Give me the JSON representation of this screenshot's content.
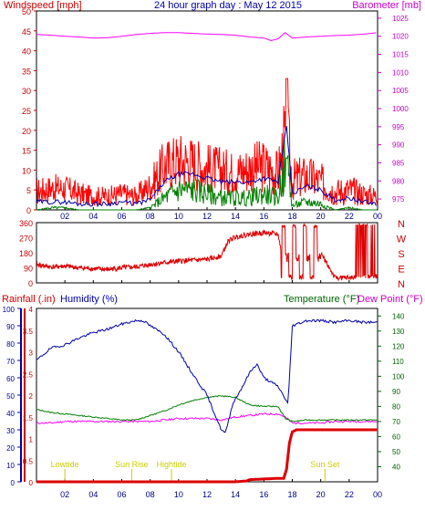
{
  "title": "24 hour graph day : May 12 2015",
  "chart_data": [
    {
      "type": "line",
      "panel": "wind-barometer",
      "left_axis": {
        "label": "Windspeed [mph]",
        "ylim": [
          0,
          50
        ],
        "ticks": [
          0,
          5,
          10,
          15,
          20,
          25,
          30,
          35,
          40,
          45,
          50
        ]
      },
      "right_axis": {
        "label": "Barometer [mb]",
        "ylim": [
          972,
          1027
        ],
        "ticks": [
          975,
          980,
          985,
          990,
          995,
          1000,
          1005,
          1010,
          1015,
          1020,
          1025
        ]
      },
      "x_tick_labels": [
        "02",
        "04",
        "06",
        "08",
        "10",
        "12",
        "14",
        "16",
        "18",
        "20",
        "22",
        "00"
      ],
      "xlim": [
        0,
        24
      ],
      "series": [
        {
          "axis": "right",
          "color": "#ff00ff",
          "x": [
            0,
            1,
            2,
            3,
            4,
            5,
            6,
            7,
            8,
            9,
            10,
            11,
            12,
            13,
            14,
            15,
            16,
            16.5,
            17,
            17.5,
            18,
            19,
            20,
            21,
            22,
            23,
            24
          ],
          "values": [
            1020.5,
            1020.3,
            1020.0,
            1019.8,
            1019.5,
            1019.6,
            1020.0,
            1020.5,
            1020.8,
            1021.0,
            1021.0,
            1020.8,
            1020.6,
            1020.5,
            1020.3,
            1019.8,
            1019.5,
            1018.8,
            1019.3,
            1021.0,
            1019.5,
            1019.8,
            1020.0,
            1020.2,
            1020.3,
            1020.6,
            1021.0
          ]
        },
        {
          "color": "#ff0000",
          "x": [
            0,
            1,
            2,
            3,
            4,
            5,
            6,
            7,
            8,
            9,
            10,
            11,
            12,
            13,
            14,
            15,
            16,
            17,
            17.6,
            18,
            19,
            20,
            21,
            22,
            23,
            24
          ],
          "values": [
            4,
            5,
            6,
            4,
            3,
            3,
            4,
            3,
            5,
            10,
            12,
            13,
            11,
            10,
            9,
            10,
            11,
            9,
            33,
            6,
            8,
            7,
            4,
            5,
            4,
            3
          ],
          "min": [
            1,
            2,
            2,
            1,
            1,
            1,
            1,
            1,
            2,
            4,
            5,
            5,
            4,
            4,
            4,
            4,
            4,
            3,
            4,
            2,
            3,
            2,
            1,
            1,
            1,
            1
          ],
          "max": [
            8,
            9,
            9,
            7,
            6,
            6,
            7,
            6,
            10,
            18,
            20,
            19,
            17,
            16,
            15,
            17,
            18,
            15,
            33,
            13,
            14,
            12,
            8,
            9,
            7,
            6
          ]
        },
        {
          "color": "#0000aa",
          "x": [
            0,
            1,
            2,
            3,
            4,
            5,
            6,
            7,
            8,
            9,
            10,
            11,
            12,
            13,
            14,
            15,
            16,
            17,
            17.6,
            18,
            19,
            20,
            21,
            22,
            23,
            24
          ],
          "values": [
            2,
            2,
            2,
            1.5,
            1.5,
            1.5,
            2,
            1.5,
            2.5,
            7,
            9,
            9,
            8,
            7,
            7,
            7,
            8,
            7,
            21,
            4,
            6,
            5,
            2.5,
            3,
            2,
            1.5
          ]
        },
        {
          "color": "#008000",
          "x": [
            0,
            1,
            2,
            3,
            4,
            5,
            6,
            7,
            8,
            9,
            10,
            11,
            12,
            13,
            14,
            15,
            16,
            17,
            17.6,
            18,
            19,
            20,
            21,
            22,
            23,
            24
          ],
          "values": [
            0,
            0.5,
            0.5,
            0,
            0,
            0,
            0,
            0,
            0.5,
            3,
            5,
            5,
            4,
            3,
            3,
            3,
            4,
            3,
            13,
            1,
            2,
            1.5,
            0,
            0.5,
            0,
            0
          ]
        }
      ]
    },
    {
      "type": "scatter",
      "panel": "wind-direction",
      "left_axis": {
        "ylim": [
          0,
          360
        ],
        "ticks": [
          0,
          90,
          180,
          270,
          360
        ]
      },
      "right_labels": [
        "N",
        "W",
        "S",
        "E",
        "N"
      ],
      "x_tick_labels": [
        "02",
        "04",
        "06",
        "08",
        "10",
        "12",
        "14",
        "16",
        "18",
        "20",
        "22",
        "00"
      ],
      "xlim": [
        0,
        24
      ],
      "series": [
        {
          "color": "#dd0000",
          "x": [
            0,
            1,
            2,
            3,
            4,
            5,
            6,
            7,
            8,
            9,
            10,
            11,
            12,
            13,
            13.5,
            14,
            15,
            16,
            17,
            17.3,
            17.8,
            18,
            19,
            20,
            21,
            22,
            23,
            24
          ],
          "values": [
            110,
            95,
            100,
            90,
            85,
            80,
            90,
            95,
            110,
            120,
            130,
            135,
            140,
            160,
            250,
            275,
            290,
            300,
            290,
            150,
            330,
            140,
            330,
            180,
            30,
            30,
            40,
            40
          ]
        }
      ]
    },
    {
      "type": "line",
      "panel": "rain-humidity-temperature",
      "left_axes": [
        {
          "label": "Rainfall (.in)",
          "color": "#cc0000",
          "ylim": [
            0,
            4
          ],
          "ticks": [
            0,
            0.5,
            1,
            1.5,
            2,
            2.5,
            3,
            3.5,
            4
          ],
          "tick_labels": [
            "0",
            "0.5",
            "1",
            "1.5",
            "2",
            "2.5",
            "3",
            "3.5",
            "4"
          ]
        },
        {
          "label": "Humidity (%)",
          "color": "#0000aa",
          "ylim": [
            0,
            100
          ],
          "ticks": [
            0,
            10,
            20,
            30,
            40,
            50,
            60,
            70,
            80,
            90,
            100
          ]
        }
      ],
      "right_axis": {
        "label": "Temperature (°F)",
        "label2": "Dew Point (°F)",
        "ylim": [
          30,
          145
        ],
        "ticks": [
          40,
          50,
          60,
          70,
          80,
          90,
          100,
          110,
          120,
          130,
          140
        ]
      },
      "x_tick_labels": [
        "02",
        "04",
        "06",
        "08",
        "10",
        "12",
        "14",
        "16",
        "18",
        "20",
        "22",
        "00"
      ],
      "xlim": [
        0,
        24
      ],
      "annotations": [
        {
          "x": 2.0,
          "text": "Lowtide"
        },
        {
          "x": 6.7,
          "text": "Sun Rise"
        },
        {
          "x": 9.5,
          "text": "Hightide"
        },
        {
          "x": 20.3,
          "text": "Sun Set"
        }
      ],
      "series": [
        {
          "name": "Humidity",
          "axis": "humidity",
          "color": "#0000aa",
          "x": [
            0,
            1,
            2,
            3,
            4,
            5,
            6,
            6.5,
            7,
            7.5,
            8,
            9,
            10,
            11,
            12,
            12.5,
            13,
            13.3,
            13.8,
            14.5,
            15,
            15.5,
            16,
            17,
            17.5,
            17.7,
            18,
            19,
            20,
            21,
            22,
            23,
            24
          ],
          "values": [
            70,
            77,
            79,
            83,
            86,
            88,
            91,
            92,
            93,
            93,
            90,
            85,
            75,
            62,
            50,
            40,
            30,
            28,
            45,
            55,
            63,
            68,
            60,
            55,
            48,
            45,
            90,
            93,
            93,
            92,
            93,
            92,
            92
          ]
        },
        {
          "name": "Temperature",
          "axis": "right",
          "color": "#008000",
          "x": [
            0,
            1,
            2,
            3,
            4,
            5,
            6,
            7,
            8,
            9,
            10,
            11,
            12,
            13,
            14,
            15,
            16,
            17,
            17.5,
            18,
            19,
            20,
            21,
            22,
            23,
            24
          ],
          "values": [
            78,
            76,
            75,
            74,
            73,
            72,
            71,
            71,
            74,
            77,
            81,
            84,
            86,
            87,
            86,
            81,
            80,
            80,
            72,
            70,
            71,
            71,
            71,
            71,
            71,
            71
          ]
        },
        {
          "name": "Dew Point",
          "axis": "right",
          "color": "#ff00ff",
          "x": [
            0,
            1,
            2,
            3,
            4,
            5,
            6,
            7,
            8,
            9,
            10,
            11,
            12,
            13,
            14,
            15,
            16,
            17,
            17.5,
            18,
            19,
            20,
            21,
            22,
            23,
            24
          ],
          "values": [
            69,
            69,
            70,
            70,
            70,
            70,
            70,
            70,
            70,
            71,
            72,
            72,
            72,
            71,
            73,
            74,
            75,
            75,
            73,
            69,
            69,
            69,
            70,
            70,
            70,
            70
          ]
        },
        {
          "name": "Rainfall",
          "axis": "rain",
          "color": "#dd0000",
          "x": [
            0,
            14.0,
            14.8,
            15.0,
            17.0,
            17.4,
            17.6,
            17.8,
            18.0,
            18.3,
            20,
            22,
            24
          ],
          "values": [
            0,
            0,
            0.02,
            0.05,
            0.08,
            0.08,
            0.3,
            0.9,
            1.15,
            1.2,
            1.2,
            1.2,
            1.2
          ]
        }
      ]
    }
  ]
}
